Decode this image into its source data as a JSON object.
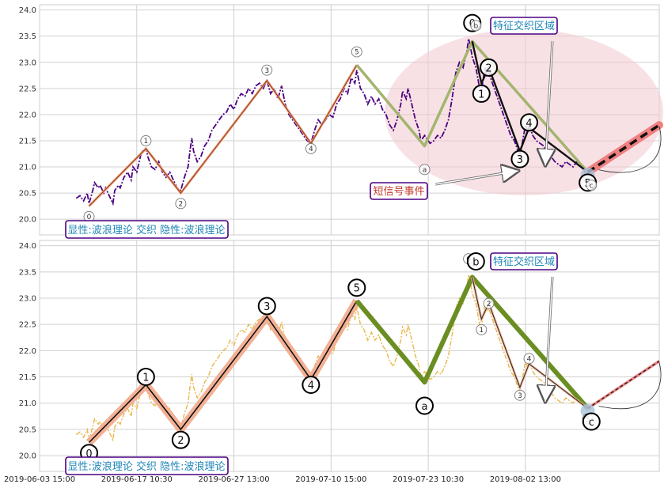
{
  "chart_data": {
    "type": "line",
    "panels": [
      {
        "id": "top",
        "legend_text": "显性:波浪理论 交织 隐性:波浪理论",
        "zone_label": "特征交织区域",
        "signal_label": "短信号事件",
        "ylim": [
          19.7,
          24.1
        ],
        "yticks": [
          20.0,
          20.5,
          21.0,
          21.5,
          22.0,
          22.5,
          23.0,
          23.5,
          24.0
        ],
        "price_color": "#4b0082",
        "wave_labels": [
          {
            "text": "0",
            "x": 7,
            "y": 20.05,
            "size": "small"
          },
          {
            "text": "1",
            "x": 38,
            "y": 21.5,
            "size": "small"
          },
          {
            "text": "2",
            "x": 57,
            "y": 20.3,
            "size": "small"
          },
          {
            "text": "3",
            "x": 104,
            "y": 22.85,
            "size": "small"
          },
          {
            "text": "4",
            "x": 128,
            "y": 21.35,
            "size": "small"
          },
          {
            "text": "5",
            "x": 153,
            "y": 23.2,
            "size": "small"
          },
          {
            "text": "a",
            "x": 190,
            "y": 20.95,
            "size": "small"
          },
          {
            "text": "0",
            "x": 216,
            "y": 23.75,
            "size": "large"
          },
          {
            "text": "b",
            "x": 218,
            "y": 23.7,
            "size": "small"
          },
          {
            "text": "2",
            "x": 225,
            "y": 22.9,
            "size": "large"
          },
          {
            "text": "1",
            "x": 221,
            "y": 22.4,
            "size": "large"
          },
          {
            "text": "3",
            "x": 242,
            "y": 21.15,
            "size": "large"
          },
          {
            "text": "4",
            "x": 247,
            "y": 21.85,
            "size": "large"
          },
          {
            "text": "5",
            "x": 279,
            "y": 20.7,
            "size": "large"
          },
          {
            "text": "c",
            "x": 281,
            "y": 20.65,
            "size": "small"
          }
        ]
      },
      {
        "id": "bottom",
        "legend_text": "显性:波浪理论 交织 隐性:波浪理论",
        "zone_label": "特征交织区域",
        "ylim": [
          19.7,
          24.1
        ],
        "yticks": [
          20.0,
          20.5,
          21.0,
          21.5,
          22.0,
          22.5,
          23.0,
          23.5,
          24.0
        ],
        "price_color": "#e8b84a",
        "wave_labels": [
          {
            "text": "0",
            "x": 7,
            "y": 20.05,
            "size": "large"
          },
          {
            "text": "1",
            "x": 38,
            "y": 21.5,
            "size": "large"
          },
          {
            "text": "2",
            "x": 57,
            "y": 20.3,
            "size": "large"
          },
          {
            "text": "3",
            "x": 104,
            "y": 22.85,
            "size": "large"
          },
          {
            "text": "4",
            "x": 128,
            "y": 21.35,
            "size": "large"
          },
          {
            "text": "5",
            "x": 153,
            "y": 23.2,
            "size": "large"
          },
          {
            "text": "a",
            "x": 190,
            "y": 20.95,
            "size": "large"
          },
          {
            "text": "0",
            "x": 214,
            "y": 23.75,
            "size": "small"
          },
          {
            "text": "b",
            "x": 218,
            "y": 23.7,
            "size": "large"
          },
          {
            "text": "2",
            "x": 225,
            "y": 22.9,
            "size": "small"
          },
          {
            "text": "1",
            "x": 221,
            "y": 22.4,
            "size": "small"
          },
          {
            "text": "3",
            "x": 242,
            "y": 21.15,
            "size": "small"
          },
          {
            "text": "4",
            "x": 247,
            "y": 21.85,
            "size": "small"
          },
          {
            "text": "5",
            "x": 279,
            "y": 20.7,
            "size": "small"
          },
          {
            "text": "c",
            "x": 281,
            "y": 20.65,
            "size": "large"
          }
        ]
      }
    ],
    "x_ticks": [
      {
        "label": "2019-06-03 15:00",
        "x": -20
      },
      {
        "label": "2019-06-17 10:30",
        "x": 33
      },
      {
        "label": "2019-06-27 13:00",
        "x": 86
      },
      {
        "label": "2019-07-10 15:00",
        "x": 139
      },
      {
        "label": "2019-07-23 10:30",
        "x": 192
      },
      {
        "label": "2019-08-02 13:00",
        "x": 245
      }
    ],
    "xlim": [
      -20,
      318
    ],
    "major_waves": [
      [
        7,
        20.25
      ],
      [
        38,
        21.35
      ],
      [
        57,
        20.5
      ],
      [
        104,
        22.65
      ],
      [
        128,
        21.45
      ],
      [
        153,
        22.95
      ]
    ],
    "correction_waves": [
      [
        153,
        22.95
      ],
      [
        190,
        21.4
      ],
      [
        216,
        23.4
      ],
      [
        279,
        20.9
      ]
    ],
    "minor_waves": [
      [
        216,
        23.4
      ],
      [
        221,
        22.6
      ],
      [
        225,
        22.9
      ],
      [
        242,
        21.3
      ],
      [
        247,
        21.75
      ],
      [
        279,
        20.9
      ]
    ],
    "projection": [
      [
        279,
        20.9
      ],
      [
        318,
        21.8
      ]
    ],
    "price": [
      [
        0,
        20.4
      ],
      [
        2,
        20.45
      ],
      [
        4,
        20.35
      ],
      [
        6,
        20.5
      ],
      [
        7,
        20.3
      ],
      [
        9,
        20.55
      ],
      [
        10,
        20.7
      ],
      [
        12,
        20.6
      ],
      [
        13,
        20.65
      ],
      [
        15,
        20.5
      ],
      [
        16,
        20.6
      ],
      [
        18,
        20.45
      ],
      [
        20,
        20.3
      ],
      [
        21,
        20.55
      ],
      [
        23,
        20.65
      ],
      [
        24,
        20.6
      ],
      [
        26,
        20.8
      ],
      [
        28,
        20.9
      ],
      [
        30,
        20.75
      ],
      [
        31,
        21.0
      ],
      [
        33,
        20.9
      ],
      [
        35,
        21.2
      ],
      [
        36,
        21.3
      ],
      [
        38,
        21.35
      ],
      [
        39,
        21.2
      ],
      [
        41,
        21.0
      ],
      [
        43,
        20.95
      ],
      [
        45,
        21.1
      ],
      [
        47,
        20.9
      ],
      [
        49,
        20.8
      ],
      [
        51,
        20.9
      ],
      [
        53,
        20.75
      ],
      [
        55,
        20.6
      ],
      [
        57,
        20.55
      ],
      [
        59,
        20.8
      ],
      [
        61,
        21.0
      ],
      [
        62,
        21.3
      ],
      [
        63,
        21.55
      ],
      [
        64,
        21.3
      ],
      [
        66,
        21.1
      ],
      [
        68,
        21.2
      ],
      [
        70,
        21.4
      ],
      [
        72,
        21.5
      ],
      [
        74,
        21.7
      ],
      [
        76,
        21.8
      ],
      [
        78,
        21.9
      ],
      [
        80,
        22.0
      ],
      [
        82,
        22.05
      ],
      [
        84,
        22.2
      ],
      [
        86,
        22.1
      ],
      [
        88,
        22.3
      ],
      [
        90,
        22.4
      ],
      [
        92,
        22.35
      ],
      [
        94,
        22.5
      ],
      [
        96,
        22.4
      ],
      [
        98,
        22.55
      ],
      [
        100,
        22.6
      ],
      [
        102,
        22.5
      ],
      [
        104,
        22.65
      ],
      [
        106,
        22.4
      ],
      [
        108,
        22.5
      ],
      [
        110,
        22.3
      ],
      [
        112,
        22.55
      ],
      [
        114,
        22.2
      ],
      [
        116,
        22.0
      ],
      [
        118,
        21.9
      ],
      [
        120,
        21.8
      ],
      [
        122,
        21.7
      ],
      [
        124,
        21.6
      ],
      [
        126,
        21.5
      ],
      [
        128,
        21.45
      ],
      [
        130,
        21.7
      ],
      [
        132,
        21.9
      ],
      [
        134,
        21.8
      ],
      [
        136,
        21.9
      ],
      [
        138,
        22.0
      ],
      [
        140,
        21.95
      ],
      [
        142,
        22.2
      ],
      [
        144,
        22.3
      ],
      [
        146,
        22.5
      ],
      [
        148,
        22.4
      ],
      [
        150,
        22.7
      ],
      [
        152,
        22.6
      ],
      [
        153,
        22.85
      ],
      [
        155,
        22.5
      ],
      [
        157,
        22.4
      ],
      [
        159,
        22.2
      ],
      [
        161,
        22.35
      ],
      [
        163,
        22.2
      ],
      [
        165,
        22.3
      ],
      [
        167,
        22.1
      ],
      [
        169,
        22.0
      ],
      [
        171,
        21.8
      ],
      [
        173,
        21.7
      ],
      [
        175,
        21.9
      ],
      [
        177,
        22.2
      ],
      [
        178,
        22.45
      ],
      [
        180,
        22.3
      ],
      [
        181,
        22.5
      ],
      [
        183,
        22.2
      ],
      [
        185,
        21.9
      ],
      [
        187,
        21.7
      ],
      [
        188,
        21.5
      ],
      [
        190,
        21.6
      ],
      [
        192,
        21.5
      ],
      [
        193,
        21.45
      ],
      [
        195,
        21.5
      ],
      [
        197,
        21.6
      ],
      [
        199,
        21.55
      ],
      [
        201,
        21.7
      ],
      [
        203,
        21.9
      ],
      [
        205,
        22.3
      ],
      [
        207,
        22.8
      ],
      [
        209,
        23.0
      ],
      [
        211,
        22.9
      ],
      [
        213,
        23.2
      ],
      [
        214,
        23.45
      ],
      [
        215,
        23.3
      ],
      [
        216,
        23.1
      ],
      [
        218,
        22.9
      ],
      [
        219,
        22.7
      ],
      [
        220,
        22.5
      ],
      [
        221,
        22.4
      ],
      [
        222,
        22.7
      ],
      [
        223,
        22.9
      ],
      [
        224,
        22.75
      ],
      [
        225,
        22.8
      ],
      [
        227,
        22.6
      ],
      [
        229,
        22.4
      ],
      [
        231,
        22.2
      ],
      [
        233,
        22.0
      ],
      [
        235,
        21.8
      ],
      [
        237,
        21.6
      ],
      [
        239,
        21.5
      ],
      [
        241,
        21.3
      ],
      [
        242,
        21.2
      ],
      [
        243,
        21.4
      ],
      [
        244,
        21.6
      ],
      [
        245,
        21.8
      ],
      [
        246,
        21.7
      ],
      [
        247,
        21.8
      ],
      [
        249,
        21.6
      ],
      [
        251,
        21.5
      ],
      [
        253,
        21.45
      ],
      [
        255,
        21.4
      ],
      [
        257,
        21.3
      ],
      [
        259,
        21.2
      ],
      [
        261,
        21.1
      ],
      [
        263,
        21.05
      ],
      [
        265,
        21.0
      ],
      [
        267,
        21.1
      ],
      [
        269,
        21.05
      ],
      [
        271,
        21.0
      ],
      [
        273,
        21.1
      ],
      [
        275,
        21.05
      ],
      [
        277,
        21.0
      ],
      [
        279,
        20.85
      ],
      [
        281,
        20.9
      ]
    ]
  }
}
